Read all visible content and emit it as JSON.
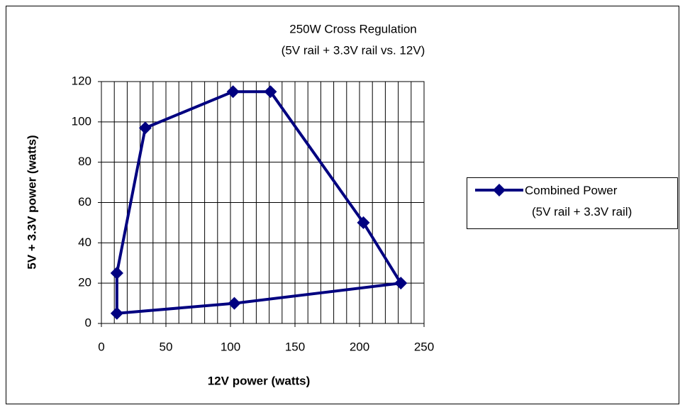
{
  "chart_data": {
    "type": "line",
    "title": "250W Cross Regulation",
    "subtitle": "(5V rail + 3.3V rail vs. 12V)",
    "x_label": "12V power (watts)",
    "y_label": "5V + 3.3V power (watts)",
    "x": [
      12,
      12,
      103,
      232,
      203,
      131,
      102,
      34,
      12
    ],
    "series": [
      {
        "name": "Combined Power (5V rail + 3.3V rail)",
        "color": "#000080",
        "values": [
          25,
          5,
          10,
          20,
          50,
          115,
          115,
          97,
          25
        ]
      }
    ],
    "xlim": [
      0,
      250
    ],
    "xticks": [
      0,
      50,
      100,
      150,
      200,
      250
    ],
    "xminorticks": [
      10,
      20,
      30,
      40,
      60,
      70,
      80,
      90,
      110,
      120,
      130,
      140,
      160,
      170,
      180,
      190,
      210,
      220,
      230,
      240
    ],
    "ylim": [
      0,
      120
    ],
    "yticks": [
      0,
      20,
      40,
      60,
      80,
      100,
      120
    ],
    "grid": true,
    "legend": "right"
  }
}
